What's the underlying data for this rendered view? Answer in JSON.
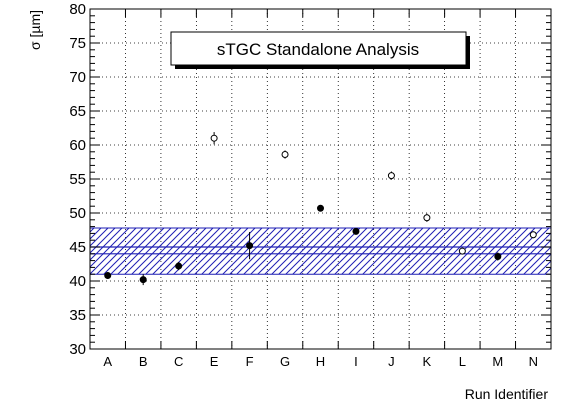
{
  "chart_data": {
    "type": "scatter",
    "title": "sTGC Standalone Analysis",
    "xlabel": "Run Identifier",
    "ylabel": "σ [µm]",
    "ylim": [
      30,
      80
    ],
    "yticks": [
      30,
      35,
      40,
      45,
      50,
      55,
      60,
      65,
      70,
      75,
      80
    ],
    "categories": [
      "A",
      "B",
      "C",
      "E",
      "F",
      "G",
      "H",
      "I",
      "J",
      "K",
      "L",
      "M",
      "N"
    ],
    "grid": true,
    "band": {
      "center": 44.5,
      "low": 41.0,
      "high": 47.8,
      "color": "#1f1fb4",
      "lines": [
        44.0,
        45.0
      ]
    },
    "points": [
      {
        "x": "A",
        "y": 40.8,
        "err": 0.5,
        "marker": "filled"
      },
      {
        "x": "B",
        "y": 40.2,
        "err": 0.8,
        "marker": "filled"
      },
      {
        "x": "C",
        "y": 42.2,
        "err": 0.6,
        "marker": "filled"
      },
      {
        "x": "E",
        "y": 61.0,
        "err": 0.9,
        "marker": "open"
      },
      {
        "x": "F",
        "y": 45.2,
        "err": 2.0,
        "marker": "filled"
      },
      {
        "x": "G",
        "y": 58.6,
        "err": 0.6,
        "marker": "open"
      },
      {
        "x": "H",
        "y": 50.7,
        "err": 0.4,
        "marker": "filled"
      },
      {
        "x": "I",
        "y": 47.3,
        "err": 0.3,
        "marker": "filled"
      },
      {
        "x": "J",
        "y": 55.5,
        "err": 0.6,
        "marker": "open"
      },
      {
        "x": "K",
        "y": 49.3,
        "err": 0.6,
        "marker": "open"
      },
      {
        "x": "L",
        "y": 44.4,
        "err": 0.5,
        "marker": "open"
      },
      {
        "x": "M",
        "y": 43.6,
        "err": 0.6,
        "marker": "filled"
      },
      {
        "x": "N",
        "y": 46.8,
        "err": 0.5,
        "marker": "open"
      }
    ]
  }
}
